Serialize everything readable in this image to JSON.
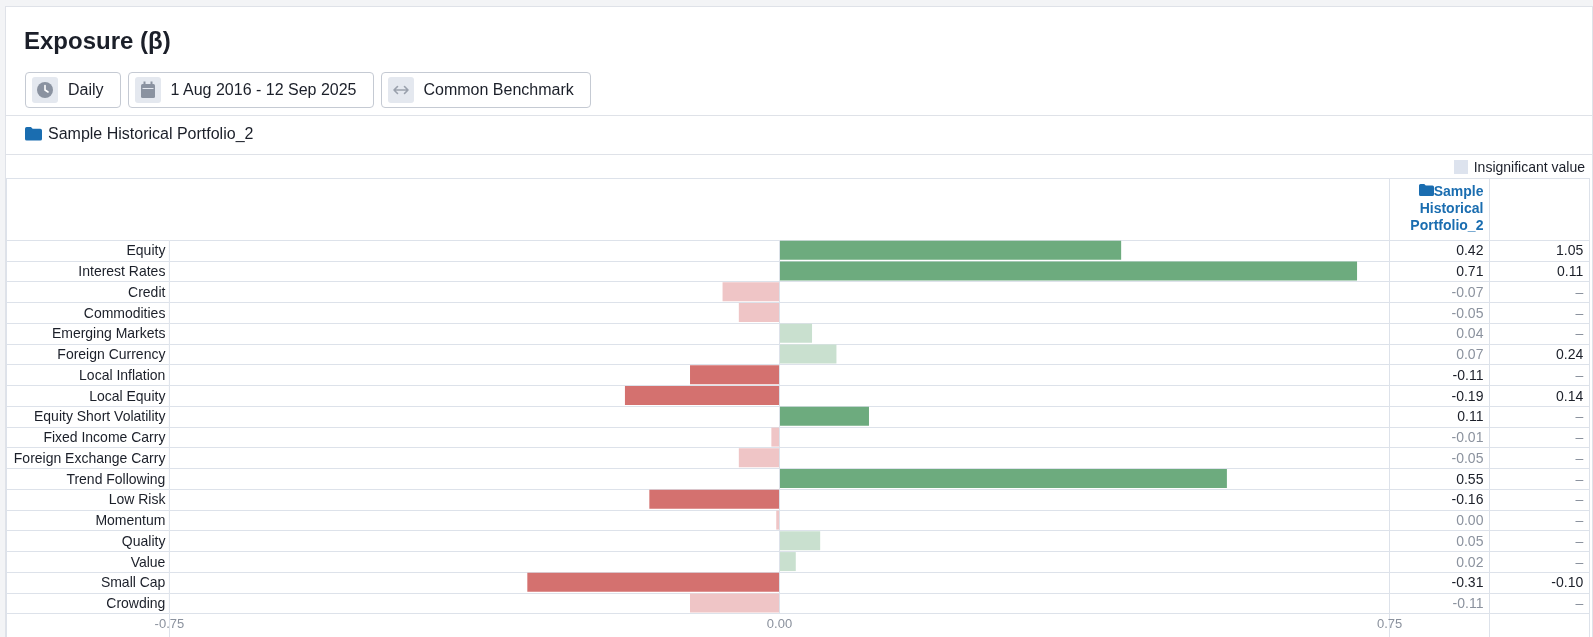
{
  "chart_data": {
    "type": "bar",
    "orientation": "horizontal",
    "title": "Exposure (β)",
    "categories": [
      "Equity",
      "Interest Rates",
      "Credit",
      "Commodities",
      "Emerging Markets",
      "Foreign Currency",
      "Local Inflation",
      "Local Equity",
      "Equity Short Volatility",
      "Fixed Income Carry",
      "Foreign Exchange Carry",
      "Trend Following",
      "Low Risk",
      "Momentum",
      "Quality",
      "Value",
      "Small Cap",
      "Crowding"
    ],
    "series": [
      {
        "name": "Sample Historical Portfolio_2",
        "values": [
          0.42,
          0.71,
          -0.07,
          -0.05,
          0.04,
          0.07,
          -0.11,
          -0.19,
          0.11,
          -0.01,
          -0.05,
          0.55,
          -0.16,
          -0.004,
          0.05,
          0.02,
          -0.31,
          -0.11
        ],
        "colors": [
          "#6dab7e",
          "#6dab7e",
          "#efc5c6",
          "#efc5c6",
          "#c9e0cf",
          "#c9e0cf",
          "#d4716f",
          "#d4716f",
          "#6dab7e",
          "#efc5c6",
          "#efc5c6",
          "#6dab7e",
          "#d4716f",
          "#efc5c6",
          "#c9e0cf",
          "#c9e0cf",
          "#d4716f",
          "#efc5c6"
        ],
        "value_labels": [
          "0.42",
          "0.71",
          "-0.07",
          "-0.05",
          "0.04",
          "0.07",
          "-0.11",
          "-0.19",
          "0.11",
          "-0.01",
          "-0.05",
          "0.55",
          "-0.16",
          "0.00",
          "0.05",
          "0.02",
          "-0.31",
          "-0.11"
        ]
      }
    ],
    "xlim": [
      -0.75,
      0.75
    ],
    "xticks": [
      -0.75,
      {
        "value": 0,
        "label": "0.00"
      },
      0.75
    ],
    "ref_lines": [
      {
        "axis": "x",
        "value": 0,
        "color": "#dde2ea"
      }
    ],
    "annotations": [
      "Daily",
      "1 Aug 2016 - 12 Sep 2025",
      "Common Benchmark",
      "Insignificant value",
      "1.05",
      "0.11",
      "–",
      "–",
      "–",
      "0.24",
      "–",
      "0.14",
      "–",
      "–",
      "–",
      "–",
      "–",
      "–",
      "–",
      "–",
      "-0.10",
      "–"
    ]
  }
}
